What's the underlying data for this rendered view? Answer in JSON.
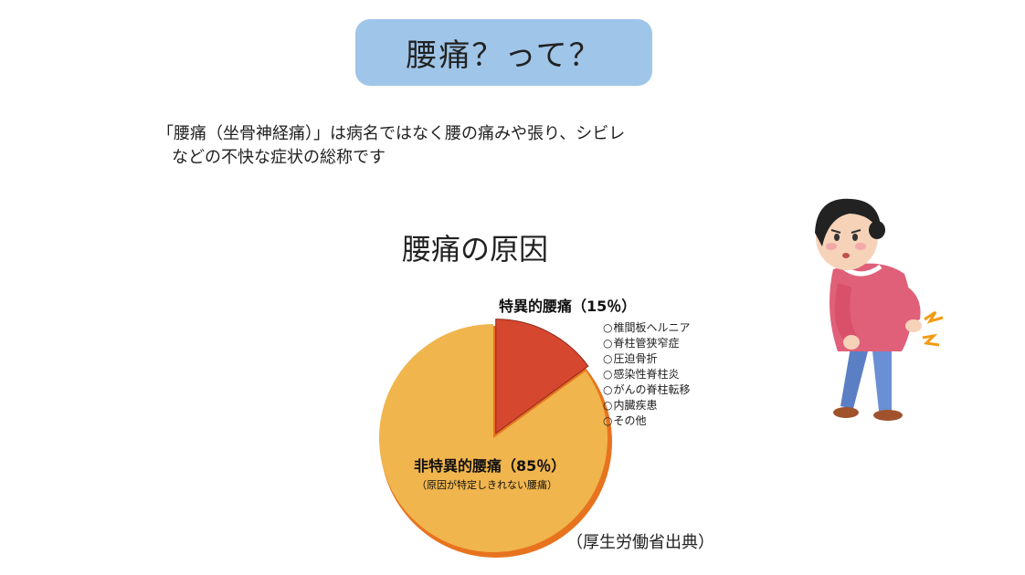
{
  "slide": {
    "title": "腰痛？って？",
    "intro_line1": "「腰痛（坐骨神経痛）」は病名ではなく腰の痛みや張り、シビレ",
    "intro_line2": "などの不快な症状の総称です",
    "source": "（厚生労働省出典）"
  },
  "chart_data": {
    "type": "pie",
    "title": "腰痛の原因",
    "slices": [
      {
        "label": "特異的腰痛（15％）",
        "value": 15,
        "color": "#d6472f",
        "details": [
          "椎間板ヘルニア",
          "脊柱管狭窄症",
          "圧迫骨折",
          "感染性脊柱炎",
          "がんの脊柱転移",
          "内臓疾患",
          "その他"
        ]
      },
      {
        "label": "非特異的腰痛（85％）",
        "value": 85,
        "color": "#f0b54d",
        "sublabel": "（原因が特定しきれない腰痛）"
      }
    ],
    "edge_color": "#e8731f"
  }
}
